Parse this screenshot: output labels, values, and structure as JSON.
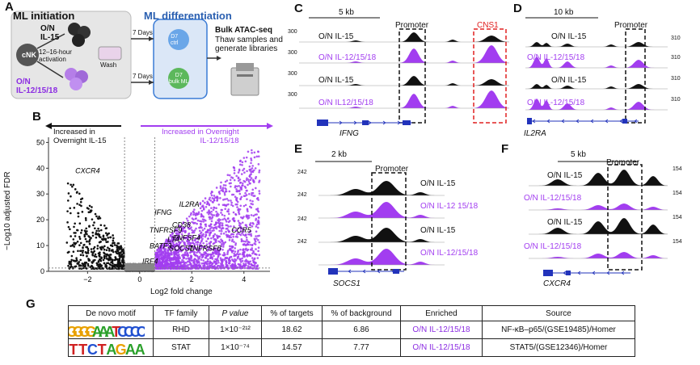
{
  "panels": {
    "A": "A",
    "B": "B",
    "C": "C",
    "D": "D",
    "E": "E",
    "F": "F",
    "G": "G"
  },
  "panelA": {
    "initiation_title": "ML initiation",
    "differentiation_title": "ML differentiation",
    "cell_label": "cNK",
    "on_il15": "O/N\nIL-15",
    "activation": "12–16-hour\nactivation",
    "wash": "Wash",
    "on_il12": "O/N\nIL-12/15/18",
    "days_top": "7 Days",
    "days_bottom": "7 Days",
    "d7_ctrl": "D7\nctrl",
    "d7_ml": "D7\nbulk ML",
    "bulk_title": "Bulk ATAC-seq",
    "bulk_desc": "Thaw samples and\ngenerate libraries"
  },
  "panelB": {
    "left_arrow_label": "Increased in\nOvernight IL-15",
    "right_arrow_label": "Increased in Overnight\nIL-12/15/18",
    "y_axis_label": "−Log10 adjusted FDR",
    "x_axis_label": "Log2 fold change",
    "genes": [
      "CXCR4",
      "IL2RA",
      "IFNG",
      "CD38",
      "TNFRSF9",
      "CCR5",
      "LTA",
      "TNFSF4",
      "BATF3",
      "SOCS1",
      "TNFRSF8",
      "IRF4"
    ]
  },
  "chart_data": {
    "type": "scatter",
    "title": "",
    "xlabel": "Log2 fold change",
    "ylabel": "−Log10 adjusted FDR",
    "xlim": [
      -3.5,
      5
    ],
    "ylim": [
      0,
      52
    ],
    "x_ticks": [
      -2,
      0,
      2,
      4
    ],
    "y_ticks": [
      0,
      10,
      20,
      30,
      40,
      50
    ],
    "grid": false,
    "series": [
      {
        "name": "Increased in Overnight IL-15",
        "color": "#111111"
      },
      {
        "name": "Increased in Overnight IL-12/15/18",
        "color": "#a23df0"
      }
    ],
    "annotations": [
      {
        "text": "CXCR4",
        "x": -2.0,
        "y": 38
      },
      {
        "text": "IL2RA",
        "x": 1.9,
        "y": 25
      },
      {
        "text": "IFNG",
        "x": 0.9,
        "y": 22
      },
      {
        "text": "CD38",
        "x": 1.6,
        "y": 17
      },
      {
        "text": "TNFRSF9",
        "x": 1.0,
        "y": 15
      },
      {
        "text": "CCR5",
        "x": 3.9,
        "y": 15
      },
      {
        "text": "LTA",
        "x": 1.3,
        "y": 11.5
      },
      {
        "text": "TNFSF4",
        "x": 1.8,
        "y": 12
      },
      {
        "text": "BATF3",
        "x": 0.8,
        "y": 9
      },
      {
        "text": "SOCS1",
        "x": 1.6,
        "y": 8
      },
      {
        "text": "TNFRSF8",
        "x": 2.5,
        "y": 8
      },
      {
        "text": "IRF4",
        "x": 0.4,
        "y": 3
      }
    ]
  },
  "panelC": {
    "scale": "5 kb",
    "promoter": "Promoter",
    "cns1": "CNS1",
    "gene": "IFNG",
    "scale_value": "300",
    "tracks": [
      "O/N IL-15",
      "O/N IL-12/15/18",
      "O/N IL-15",
      "O/N IL12/15/18"
    ]
  },
  "panelD": {
    "scale": "10 kb",
    "promoter": "Promoter",
    "gene": "IL2RA",
    "scale_value": "310",
    "tracks": [
      "O/N IL-15",
      "O/N IL-12/15/18",
      "O/N IL-15",
      "O/N IL-12/15/18"
    ]
  },
  "panelE": {
    "scale": "2 kb",
    "promoter": "Promoter",
    "gene": "SOCS1",
    "scale_value": "242",
    "tracks": [
      "O/N IL-15",
      "O/N IL-12 15/18",
      "O/N IL-15",
      "O/N IL-12/15/18"
    ]
  },
  "panelF": {
    "scale": "5 kb",
    "promoter": "Promoter",
    "gene": "CXCR4",
    "scale_value": "154",
    "tracks": [
      "O/N IL-15",
      "O/N IL-12/15/18",
      "O/N IL-15",
      "O/N IL-12/15/18"
    ]
  },
  "panelG": {
    "headers": [
      "De novo motif",
      "TF family",
      "P value",
      "% of targets",
      "% of background",
      "Enriched",
      "Source"
    ],
    "rows": [
      {
        "motif_text": "GGGGAAATCCCC",
        "tf": "RHD",
        "p": "1×10⁻²¹²",
        "targets": "18.62",
        "background": "6.86",
        "enriched": "O/N IL-12/15/18",
        "source": "NF-κB–p65/(GSE19485)/Homer"
      },
      {
        "motif_text": "TTCTAGAA",
        "tf": "STAT",
        "p": "1×10⁻⁷⁴",
        "targets": "14.57",
        "background": "7.77",
        "enriched": "O/N IL-12/15/18",
        "source": "STAT5/(GSE12346)/Homer"
      }
    ]
  },
  "colors": {
    "purple": "#a23df0",
    "black": "#111111",
    "red": "#e02020",
    "blue": "#2233bb"
  }
}
